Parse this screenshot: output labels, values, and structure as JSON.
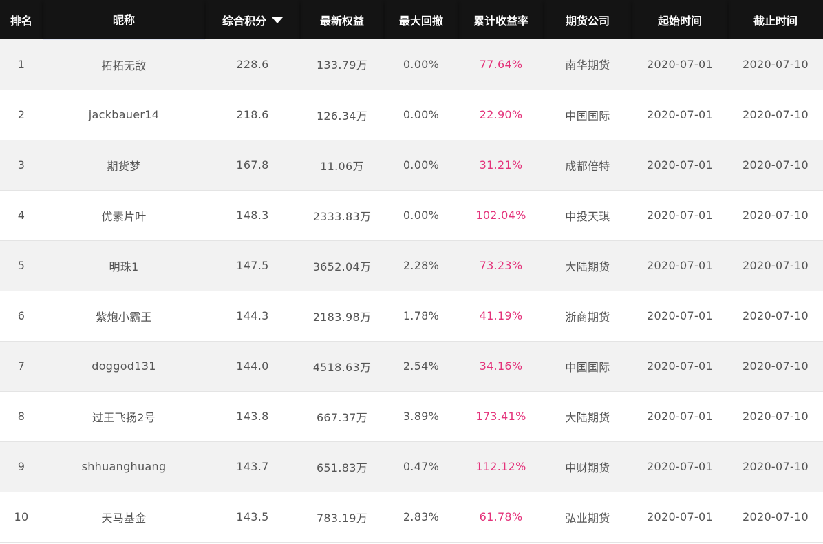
{
  "headers": {
    "rank": "排名",
    "nickname": "昵称",
    "score": "综合积分",
    "equity": "最新权益",
    "drawdown": "最大回撤",
    "return_rate": "累计收益率",
    "company": "期货公司",
    "start": "起始时间",
    "end": "截止时间"
  },
  "sort": {
    "column": "score",
    "direction": "desc",
    "icon": "caret-down-icon"
  },
  "colors": {
    "header_bg": "#141414",
    "header_text": "#ffffff",
    "row_odd_bg": "#f2f2f2",
    "row_even_bg": "#ffffff",
    "cell_text": "#555555",
    "return_rate_text": "#e4327a"
  },
  "rows": [
    {
      "rank": "1",
      "nickname": "拓拓无敌",
      "score": "228.6",
      "equity": "133.79万",
      "drawdown": "0.00%",
      "return_rate": "77.64%",
      "company": "南华期货",
      "start": "2020-07-01",
      "end": "2020-07-10"
    },
    {
      "rank": "2",
      "nickname": "jackbauer14",
      "score": "218.6",
      "equity": "126.34万",
      "drawdown": "0.00%",
      "return_rate": "22.90%",
      "company": "中国国际",
      "start": "2020-07-01",
      "end": "2020-07-10"
    },
    {
      "rank": "3",
      "nickname": "期货梦",
      "score": "167.8",
      "equity": "11.06万",
      "drawdown": "0.00%",
      "return_rate": "31.21%",
      "company": "成都倍特",
      "start": "2020-07-01",
      "end": "2020-07-10"
    },
    {
      "rank": "4",
      "nickname": "优素片叶",
      "score": "148.3",
      "equity": "2333.83万",
      "drawdown": "0.00%",
      "return_rate": "102.04%",
      "company": "中投天琪",
      "start": "2020-07-01",
      "end": "2020-07-10"
    },
    {
      "rank": "5",
      "nickname": "明珠1",
      "score": "147.5",
      "equity": "3652.04万",
      "drawdown": "2.28%",
      "return_rate": "73.23%",
      "company": "大陆期货",
      "start": "2020-07-01",
      "end": "2020-07-10"
    },
    {
      "rank": "6",
      "nickname": "紫炮小霸王",
      "score": "144.3",
      "equity": "2183.98万",
      "drawdown": "1.78%",
      "return_rate": "41.19%",
      "company": "浙商期货",
      "start": "2020-07-01",
      "end": "2020-07-10"
    },
    {
      "rank": "7",
      "nickname": "doggod131",
      "score": "144.0",
      "equity": "4518.63万",
      "drawdown": "2.54%",
      "return_rate": "34.16%",
      "company": "中国国际",
      "start": "2020-07-01",
      "end": "2020-07-10"
    },
    {
      "rank": "8",
      "nickname": "过王飞扬2号",
      "score": "143.8",
      "equity": "667.37万",
      "drawdown": "3.89%",
      "return_rate": "173.41%",
      "company": "大陆期货",
      "start": "2020-07-01",
      "end": "2020-07-10"
    },
    {
      "rank": "9",
      "nickname": "shhuanghuang",
      "score": "143.7",
      "equity": "651.83万",
      "drawdown": "0.47%",
      "return_rate": "112.12%",
      "company": "中财期货",
      "start": "2020-07-01",
      "end": "2020-07-10"
    },
    {
      "rank": "10",
      "nickname": "天马基金",
      "score": "143.5",
      "equity": "783.19万",
      "drawdown": "2.83%",
      "return_rate": "61.78%",
      "company": "弘业期货",
      "start": "2020-07-01",
      "end": "2020-07-10"
    }
  ]
}
